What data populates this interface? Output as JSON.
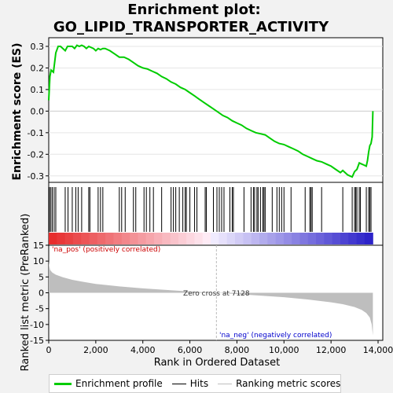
{
  "title_line1": "Enrichment plot:",
  "title_line2": "GO_LIPID_TRANSPORTER_ACTIVITY",
  "colors": {
    "enrichment_line": "#00cc00",
    "hits": "#000000",
    "ranking_fill": "#bebebe",
    "pos_label": "#cc0000",
    "neg_label": "#0000cc",
    "zero_line": "#cccccc"
  },
  "legend": [
    {
      "label": "Enrichment profile",
      "kind": "line",
      "color": "#00cc00",
      "name": "legend-enrichment-profile"
    },
    {
      "label": "Hits",
      "kind": "line",
      "color": "#000000",
      "name": "legend-hits"
    },
    {
      "label": "Ranking metric scores",
      "kind": "line",
      "color": "#bebebe",
      "name": "legend-ranking-metric"
    }
  ],
  "chart_data": [
    {
      "type": "line",
      "name": "enrichment-profile",
      "ylabel": "Enrichment score (ES)",
      "ylim": [
        -0.33,
        0.34
      ],
      "xlim": [
        0,
        14200
      ],
      "yticks": [
        0.3,
        0.2,
        0.1,
        0.0,
        -0.1,
        -0.2,
        -0.3
      ],
      "ytick_labels": [
        "0.3",
        "0.2",
        "0.1",
        "0.0",
        "-0.1",
        "-0.2",
        "-0.3"
      ],
      "grid": true,
      "x": [
        0,
        50,
        100,
        200,
        300,
        400,
        500,
        600,
        700,
        800,
        900,
        1000,
        1100,
        1200,
        1300,
        1400,
        1500,
        1600,
        1700,
        1800,
        1900,
        2000,
        2100,
        2200,
        2300,
        2400,
        2600,
        2800,
        3000,
        3200,
        3400,
        3600,
        3800,
        4000,
        4200,
        4400,
        4600,
        4800,
        5000,
        5200,
        5400,
        5600,
        5800,
        6000,
        6200,
        6400,
        6600,
        6800,
        7000,
        7200,
        7400,
        7600,
        7800,
        8000,
        8200,
        8400,
        8600,
        8800,
        9000,
        9200,
        9400,
        9600,
        9800,
        10000,
        10200,
        10400,
        10600,
        10800,
        11000,
        11200,
        11400,
        11600,
        11800,
        12000,
        12200,
        12400,
        12500,
        12600,
        12700,
        12800,
        12900,
        13000,
        13100,
        13200,
        13300,
        13400,
        13500,
        13550,
        13600,
        13650,
        13700,
        13750,
        13780
      ],
      "y": [
        0.05,
        0.16,
        0.19,
        0.18,
        0.27,
        0.3,
        0.3,
        0.29,
        0.28,
        0.3,
        0.3,
        0.3,
        0.29,
        0.305,
        0.3,
        0.305,
        0.3,
        0.29,
        0.3,
        0.295,
        0.29,
        0.28,
        0.29,
        0.285,
        0.29,
        0.29,
        0.28,
        0.265,
        0.25,
        0.25,
        0.24,
        0.225,
        0.21,
        0.2,
        0.195,
        0.185,
        0.175,
        0.16,
        0.15,
        0.135,
        0.125,
        0.11,
        0.1,
        0.085,
        0.07,
        0.055,
        0.04,
        0.025,
        0.01,
        -0.005,
        -0.02,
        -0.03,
        -0.045,
        -0.055,
        -0.065,
        -0.08,
        -0.09,
        -0.1,
        -0.105,
        -0.11,
        -0.125,
        -0.14,
        -0.15,
        -0.155,
        -0.165,
        -0.175,
        -0.185,
        -0.2,
        -0.21,
        -0.22,
        -0.23,
        -0.235,
        -0.245,
        -0.255,
        -0.27,
        -0.285,
        -0.275,
        -0.285,
        -0.295,
        -0.3,
        -0.305,
        -0.28,
        -0.27,
        -0.24,
        -0.245,
        -0.25,
        -0.255,
        -0.23,
        -0.19,
        -0.16,
        -0.15,
        -0.12,
        0.0
      ]
    },
    {
      "type": "scatter",
      "name": "hits",
      "x": [
        30,
        90,
        150,
        230,
        300,
        700,
        820,
        1000,
        1150,
        1250,
        1400,
        1700,
        1750,
        2100,
        2200,
        2300,
        3000,
        3100,
        3250,
        3600,
        3700,
        4050,
        4150,
        4300,
        4450,
        4800,
        5200,
        5300,
        5400,
        5550,
        5700,
        5800,
        5850,
        6000,
        6200,
        6300,
        6650,
        6700,
        7000,
        7150,
        7250,
        7350,
        7450,
        7700,
        7800,
        7850,
        8300,
        8600,
        8700,
        8750,
        8850,
        8900,
        9000,
        9100,
        9150,
        9200,
        9500,
        9700,
        9800,
        9900,
        10000,
        10300,
        10900,
        11100,
        11150,
        11200,
        11600,
        12500,
        12900,
        13000,
        13050,
        13100,
        13200,
        13250,
        13500,
        13600,
        13650,
        13700
      ]
    },
    {
      "type": "area",
      "name": "ranking-metric",
      "ylabel": "Ranked list metric (PreRanked)",
      "xlabel": "Rank in Ordered Dataset",
      "ylim": [
        -15,
        15
      ],
      "yticks": [
        15,
        10,
        5,
        0,
        -5,
        -10,
        -15
      ],
      "ytick_labels": [
        "15",
        "10",
        "5",
        "0",
        "-5",
        "-10",
        "-15"
      ],
      "xticks": [
        0,
        2000,
        4000,
        6000,
        8000,
        10000,
        12000,
        14000
      ],
      "xtick_labels": [
        "0",
        "2,000",
        "4,000",
        "6,000",
        "8,000",
        "10,000",
        "12,000",
        "14,000"
      ],
      "x": [
        0,
        20,
        60,
        150,
        300,
        600,
        1000,
        1500,
        2000,
        3000,
        4000,
        5000,
        6000,
        7128,
        8000,
        9000,
        10000,
        11000,
        12000,
        12500,
        13000,
        13300,
        13500,
        13650,
        13730,
        13780
      ],
      "y": [
        10,
        8.5,
        7.2,
        6.4,
        5.7,
        4.9,
        4.1,
        3.4,
        2.8,
        2.0,
        1.4,
        0.9,
        0.4,
        0.0,
        -0.4,
        -0.9,
        -1.4,
        -2.1,
        -3.0,
        -3.6,
        -4.5,
        -5.4,
        -6.4,
        -7.8,
        -10.0,
        -13.5
      ],
      "zero_cross_label": "Zero cross at 7128",
      "zero_cross": 7128,
      "pos_label": "'na_pos' (positively correlated)",
      "neg_label": "'na_neg' (negatively correlated)"
    }
  ]
}
